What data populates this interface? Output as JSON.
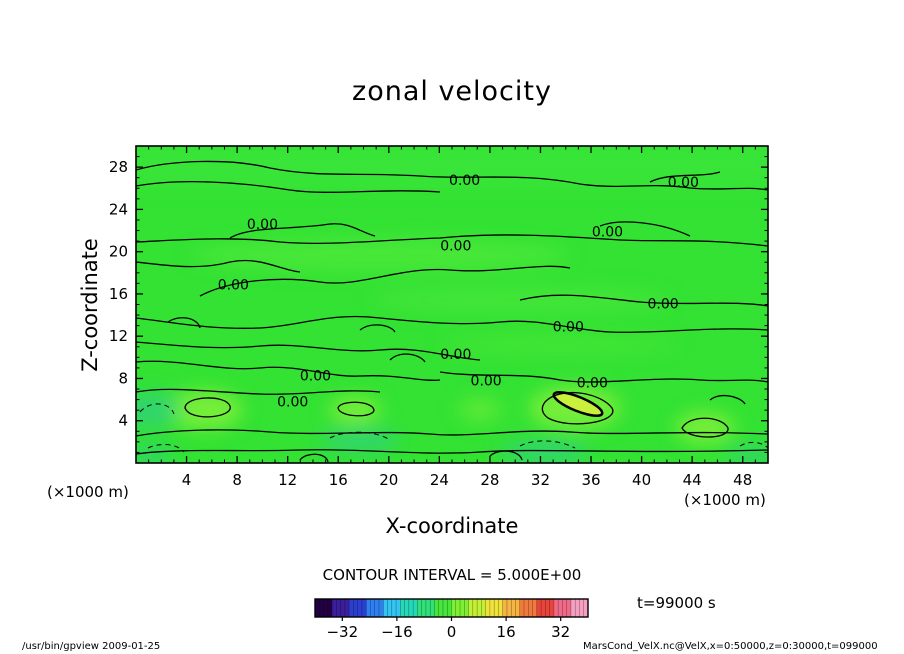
{
  "chart_data": {
    "type": "contour",
    "title": "zonal velocity",
    "xlabel": "X-coordinate",
    "ylabel": "Z-coordinate",
    "x_unit": "(×1000 m)",
    "y_unit": "(×1000 m)",
    "xlim": [
      0,
      50
    ],
    "ylim": [
      0,
      30
    ],
    "x_ticks": [
      4,
      8,
      12,
      16,
      20,
      24,
      28,
      32,
      36,
      40,
      44,
      48
    ],
    "y_ticks": [
      4,
      8,
      12,
      16,
      20,
      24,
      28
    ],
    "contour_interval_label": "CONTOUR INTERVAL = 5.000E+00",
    "contour_interval": 5,
    "contour_labels": [
      {
        "text": "0.00",
        "x": 26.0,
        "y": 26.8
      },
      {
        "text": "0.00",
        "x": 43.3,
        "y": 26.6
      },
      {
        "text": "0.00",
        "x": 10.0,
        "y": 22.6
      },
      {
        "text": "0.00",
        "x": 25.3,
        "y": 20.6
      },
      {
        "text": "0.00",
        "x": 37.3,
        "y": 21.9
      },
      {
        "text": "0.00",
        "x": 7.7,
        "y": 16.9
      },
      {
        "text": "0.00",
        "x": 41.7,
        "y": 15.1
      },
      {
        "text": "0.00",
        "x": 34.2,
        "y": 12.9
      },
      {
        "text": "0.00",
        "x": 25.3,
        "y": 10.3
      },
      {
        "text": "0.00",
        "x": 14.2,
        "y": 8.3
      },
      {
        "text": "0.00",
        "x": 27.7,
        "y": 7.8
      },
      {
        "text": "0.00",
        "x": 36.1,
        "y": 7.6
      },
      {
        "text": "0.00",
        "x": 12.4,
        "y": 5.8
      }
    ],
    "colorbar": {
      "min": -40,
      "max": 40,
      "ticks": [
        -32,
        -16,
        0,
        16,
        32
      ],
      "colors": [
        "#220044",
        "#3b1e9c",
        "#2a3fd1",
        "#2f7ff0",
        "#33c4f0",
        "#25d9b8",
        "#30e07a",
        "#46e63c",
        "#7ef034",
        "#c2f036",
        "#efe23a",
        "#f5b540",
        "#f07a3e",
        "#e8443a",
        "#f06a88",
        "#f5a0c0"
      ]
    },
    "time_label": "t=99000 s",
    "colors": {
      "background_field": "#33e233",
      "lighter_field": "#6fee3a",
      "weak_negative": "#2ecf73",
      "contour_line": "#000000"
    }
  },
  "footer": {
    "left": "/usr/bin/gpview   2009-01-25",
    "right": "MarsCond_VelX.nc@VelX,x=0:50000,z=0:30000,t=099000"
  }
}
